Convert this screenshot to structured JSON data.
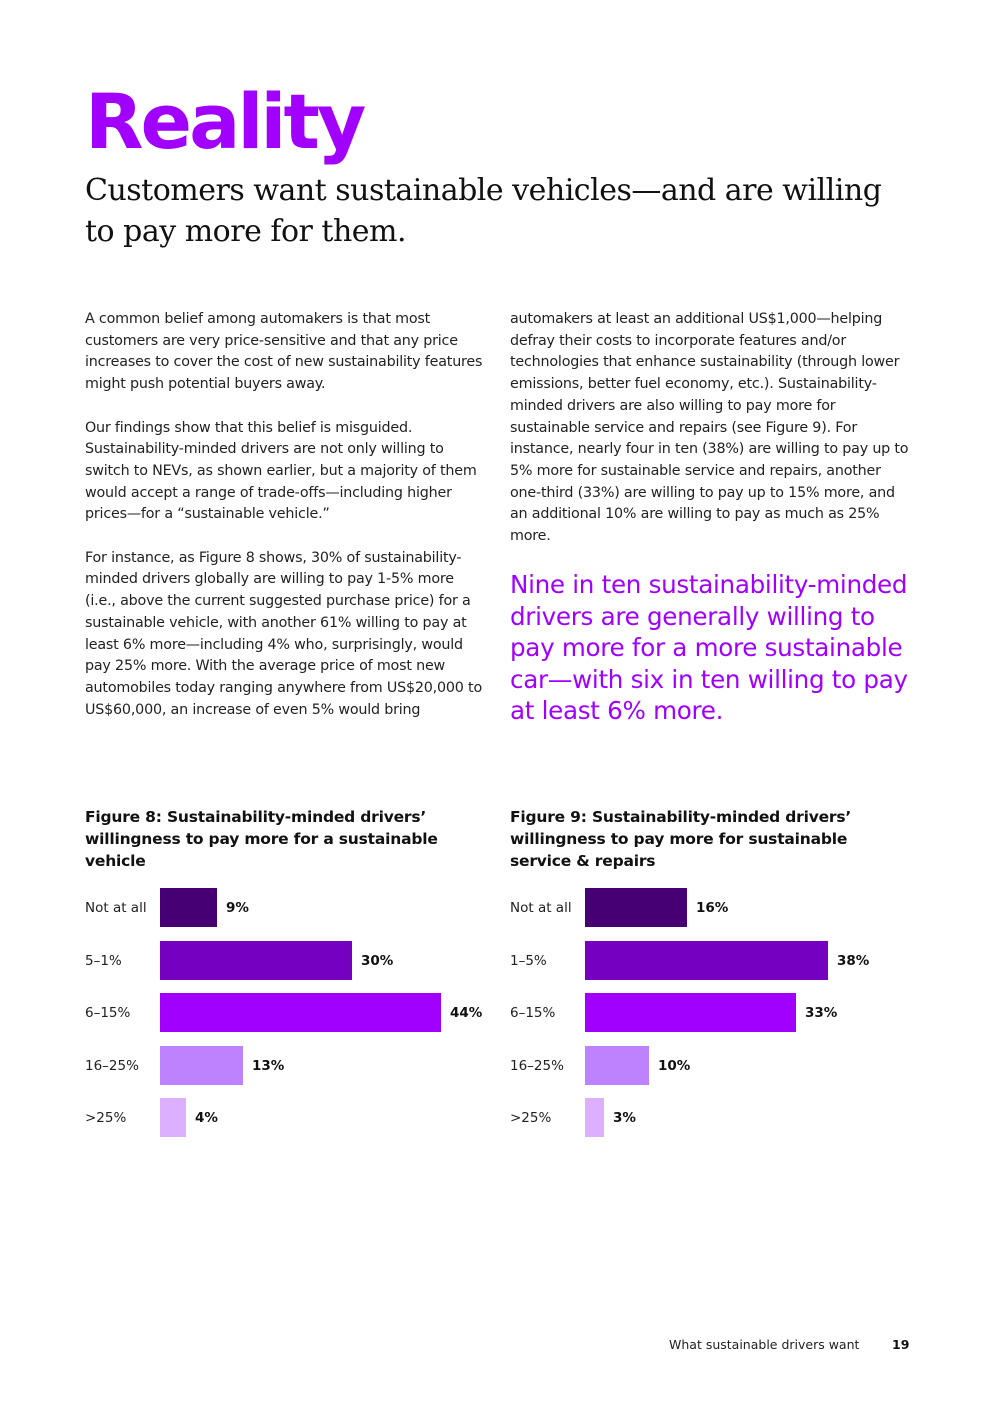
{
  "header": {
    "title": "Reality",
    "subtitle": "Customers want sustainable vehicles—and are willing to pay more for them."
  },
  "body": {
    "left_paragraphs": [
      "A common belief among automakers is that most customers are very price-sensitive and that any price increases to cover the cost of new sustainability features might push potential buyers away.",
      "Our findings show that this belief is misguided. Sustainability-minded drivers are not only willing to switch to NEVs, as shown earlier, but a majority of them would accept a range of trade-offs—including higher prices—for a “sustainable vehicle.”",
      "For instance, as Figure 8 shows, 30% of sustainability-minded drivers globally are willing to pay 1-5% more (i.e., above the current suggested purchase price) for a sustainable vehicle, with another 61% willing to pay at least 6% more—including 4% who, surprisingly, would pay 25% more. With the average price of most new automobiles today ranging anywhere from US$20,000 to US$60,000, an increase of even 5% would bring"
    ],
    "right_paragraphs": [
      "automakers at least an additional US$1,000—helping defray their costs to incorporate features and/or technologies that enhance sustainability (through lower emissions, better fuel economy, etc.). Sustainability-minded drivers are also willing to pay more for sustainable service and repairs (see Figure 9). For instance, nearly four in ten (38%) are willing to pay up to 5% more for sustainable service and repairs, another one-third (33%) are willing to pay up to 15% more, and an additional 10% are willing to pay as much as 25% more."
    ],
    "pullquote": "Nine in ten sustainability-minded drivers are generally willing to pay more for a more sustainable car—with six in ten willing to pay at least 6% more."
  },
  "chart_data": [
    {
      "type": "bar",
      "orientation": "horizontal",
      "title": "Figure 8: Sustainability-minded drivers’ willingness to pay more for a sustainable vehicle",
      "categories": [
        "Not at all",
        "5–1%",
        "6–15%",
        "16–25%",
        ">25%"
      ],
      "values": [
        9,
        30,
        44,
        13,
        4
      ],
      "value_labels": [
        "9%",
        "30%",
        "44%",
        "13%",
        "4%"
      ],
      "colors": [
        "#460073",
        "#7500c0",
        "#a100ff",
        "#be82ff",
        "#dcafff"
      ],
      "xlim": [
        0,
        44
      ]
    },
    {
      "type": "bar",
      "orientation": "horizontal",
      "title": "Figure 9: Sustainability-minded drivers’ willingness to pay more for sustainable service & repairs",
      "categories": [
        "Not at all",
        "1–5%",
        "6–15%",
        "16–25%",
        ">25%"
      ],
      "values": [
        16,
        38,
        33,
        10,
        3
      ],
      "value_labels": [
        "16%",
        "38%",
        "33%",
        "10%",
        "3%"
      ],
      "colors": [
        "#460073",
        "#7500c0",
        "#a100ff",
        "#be82ff",
        "#dcafff"
      ],
      "xlim": [
        0,
        44
      ]
    }
  ],
  "footer": {
    "section": "What sustainable drivers want",
    "page_number": "19"
  }
}
